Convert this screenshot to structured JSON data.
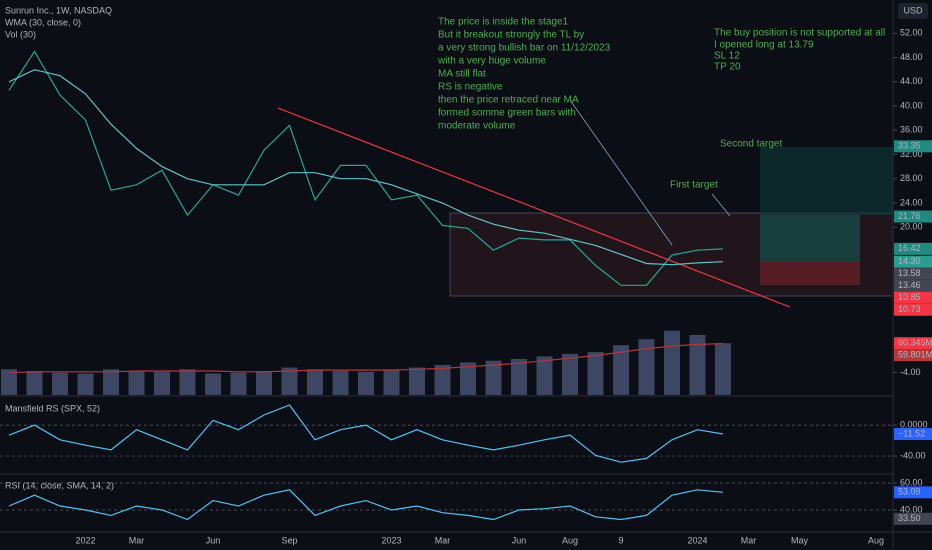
{
  "header": {
    "symbol": "Sunrun Inc., 1W, NASDAQ",
    "indicator": "WMA (30, close, 0)",
    "volume": "Vol (30)",
    "currency": "USD"
  },
  "annotations": {
    "analysis": [
      "The price is inside the stage1",
      "But it breakout strongly the TL by",
      "a very strong bullish bar on 11/12/2023",
      "with a very huge volume",
      "MA still flat",
      "RS is negative",
      "then the price retraced near MA",
      "formed somme green bars with",
      "moderate volume"
    ],
    "position": [
      "The buy position is not supported at all",
      "I opened long at 13.79",
      "SL 12",
      "TP 20"
    ],
    "second_target": "Second target",
    "first_target": "First target"
  },
  "chart_data": [
    {
      "type": "line",
      "categories": [
        null,
        null,
        null,
        "2022",
        null,
        "Mar",
        null,
        null,
        "Jun",
        null,
        null,
        "Sep",
        null,
        null,
        null,
        "2023",
        null,
        "Mar",
        null,
        null,
        "Jun",
        null,
        "Aug",
        null,
        "9",
        null,
        null,
        "2024",
        null,
        "Mar",
        null,
        "May",
        null,
        null,
        "Aug"
      ],
      "series": [
        {
          "color": "#26a69a",
          "values": [
            42.6,
            49,
            41.8,
            37.7,
            26.1,
            27,
            29.4,
            22,
            27,
            25.3,
            32.7,
            36.8,
            24.5,
            30.2,
            30.2,
            24.5,
            25.3,
            20.3,
            19.8,
            16.2,
            18.2,
            17.9,
            17.9,
            13.7,
            10.4,
            10.4,
            15.4,
            16.2,
            16.42,
            null,
            null,
            null,
            null,
            null,
            null
          ]
        },
        {
          "color": "#5fc3c9",
          "values": [
            44,
            46,
            45,
            42,
            37,
            33,
            30,
            28,
            27,
            27,
            27,
            29,
            29,
            28,
            28,
            27,
            25.5,
            24,
            22,
            20.5,
            19.5,
            19,
            18,
            17,
            15.5,
            14,
            13.8,
            14.1,
            14.3,
            null,
            null,
            null,
            null,
            null,
            null
          ]
        }
      ],
      "ylim": [
        -7.7,
        57.5
      ],
      "yticks": [
        {
          "value": 52,
          "label": "52.00"
        },
        {
          "value": 48,
          "label": "48.00"
        },
        {
          "value": 44,
          "label": "44.00"
        },
        {
          "value": 40,
          "label": "40.00"
        },
        {
          "value": 36,
          "label": "36.00"
        },
        {
          "value": 32,
          "label": "32.00"
        },
        {
          "value": 28,
          "label": "28.00"
        },
        {
          "value": 24,
          "label": "24.00"
        },
        {
          "value": 20,
          "label": "20.00"
        },
        {
          "value": -4,
          "label": "-4.00"
        }
      ],
      "tags": [
        33.35,
        21.76,
        16.42,
        {
          "value": 14.3,
          "label": "14.30"
        },
        13.58,
        13.46,
        10.85,
        10.73
      ],
      "tag_colors": [
        "#1f8a80",
        "#1f8a80",
        "#1f8a80",
        "#2a9d8f",
        "#434651",
        "#434651",
        "#f23645",
        "#f23645"
      ],
      "grid": false
    },
    {
      "type": "bar",
      "values": [
        30,
        28,
        26,
        25,
        30,
        28,
        27,
        30,
        25,
        26,
        28,
        32,
        30,
        28,
        27,
        30,
        32,
        35,
        38,
        40,
        42,
        45,
        48,
        50,
        58,
        65,
        75,
        70,
        60.345,
        null,
        null,
        null,
        null,
        null,
        null
      ],
      "color": "#4a5576",
      "ma": {
        "color": "#b2383b",
        "values": [
          26,
          27,
          27,
          27,
          27,
          28,
          28,
          28,
          28,
          27,
          27,
          28,
          29,
          29,
          29,
          29,
          30,
          31,
          33,
          35,
          37,
          40,
          43,
          46,
          50,
          54,
          57,
          59,
          59.801,
          null,
          null,
          null,
          null,
          null,
          null
        ]
      },
      "ylim": [
        0,
        120
      ],
      "tags": [
        {
          "value": 60.345,
          "label": "60.345M"
        },
        {
          "value": 59.801,
          "label": "59.801M"
        }
      ],
      "tag_colors": [
        "#f23645",
        "#b2383b"
      ]
    },
    {
      "type": "line",
      "title": "Mansfield RS (SPX, 52)",
      "series": [
        {
          "color": "#4fc3f7",
          "values": [
            -13,
            0,
            -19,
            -26,
            -32,
            -6,
            -19,
            -32,
            6,
            -6,
            13,
            26,
            -19,
            -6,
            0,
            -19,
            -6,
            -19,
            -26,
            -32,
            -26,
            -19,
            -13,
            -39,
            -48,
            -43,
            -19,
            -6,
            -11.52,
            null,
            null,
            null,
            null,
            null,
            null
          ]
        }
      ],
      "ylim": [
        -60.6,
        35
      ],
      "yticks": [
        {
          "value": 0,
          "label": "0.0000"
        },
        {
          "value": -40,
          "label": "-40.00"
        }
      ],
      "tags": [
        {
          "value": -11.52,
          "label": "−11.52"
        }
      ],
      "tag_colors": [
        "#2962ff"
      ],
      "grid": true
    },
    {
      "type": "line",
      "title": "RSI (14, close, SMA, 14, 2)",
      "series": [
        {
          "color": "#4fc3f7",
          "values": [
            43,
            51,
            43,
            40,
            36,
            43,
            40,
            33,
            47,
            43,
            51,
            55,
            36,
            43,
            47,
            40,
            43,
            38,
            36,
            33,
            40,
            41,
            43,
            35,
            33,
            36,
            51,
            55,
            53.09,
            null,
            null,
            null,
            null,
            null,
            null
          ]
        }
      ],
      "ylim": [
        25.2,
        65.2
      ],
      "yticks": [
        {
          "value": 60,
          "label": "60.00"
        },
        {
          "value": 40,
          "label": "40.00"
        }
      ],
      "tags": [
        53.09,
        {
          "value": 33.5,
          "label": "33.50"
        }
      ],
      "tag_colors": [
        "#2962ff",
        "#434651"
      ],
      "grid": true
    }
  ]
}
